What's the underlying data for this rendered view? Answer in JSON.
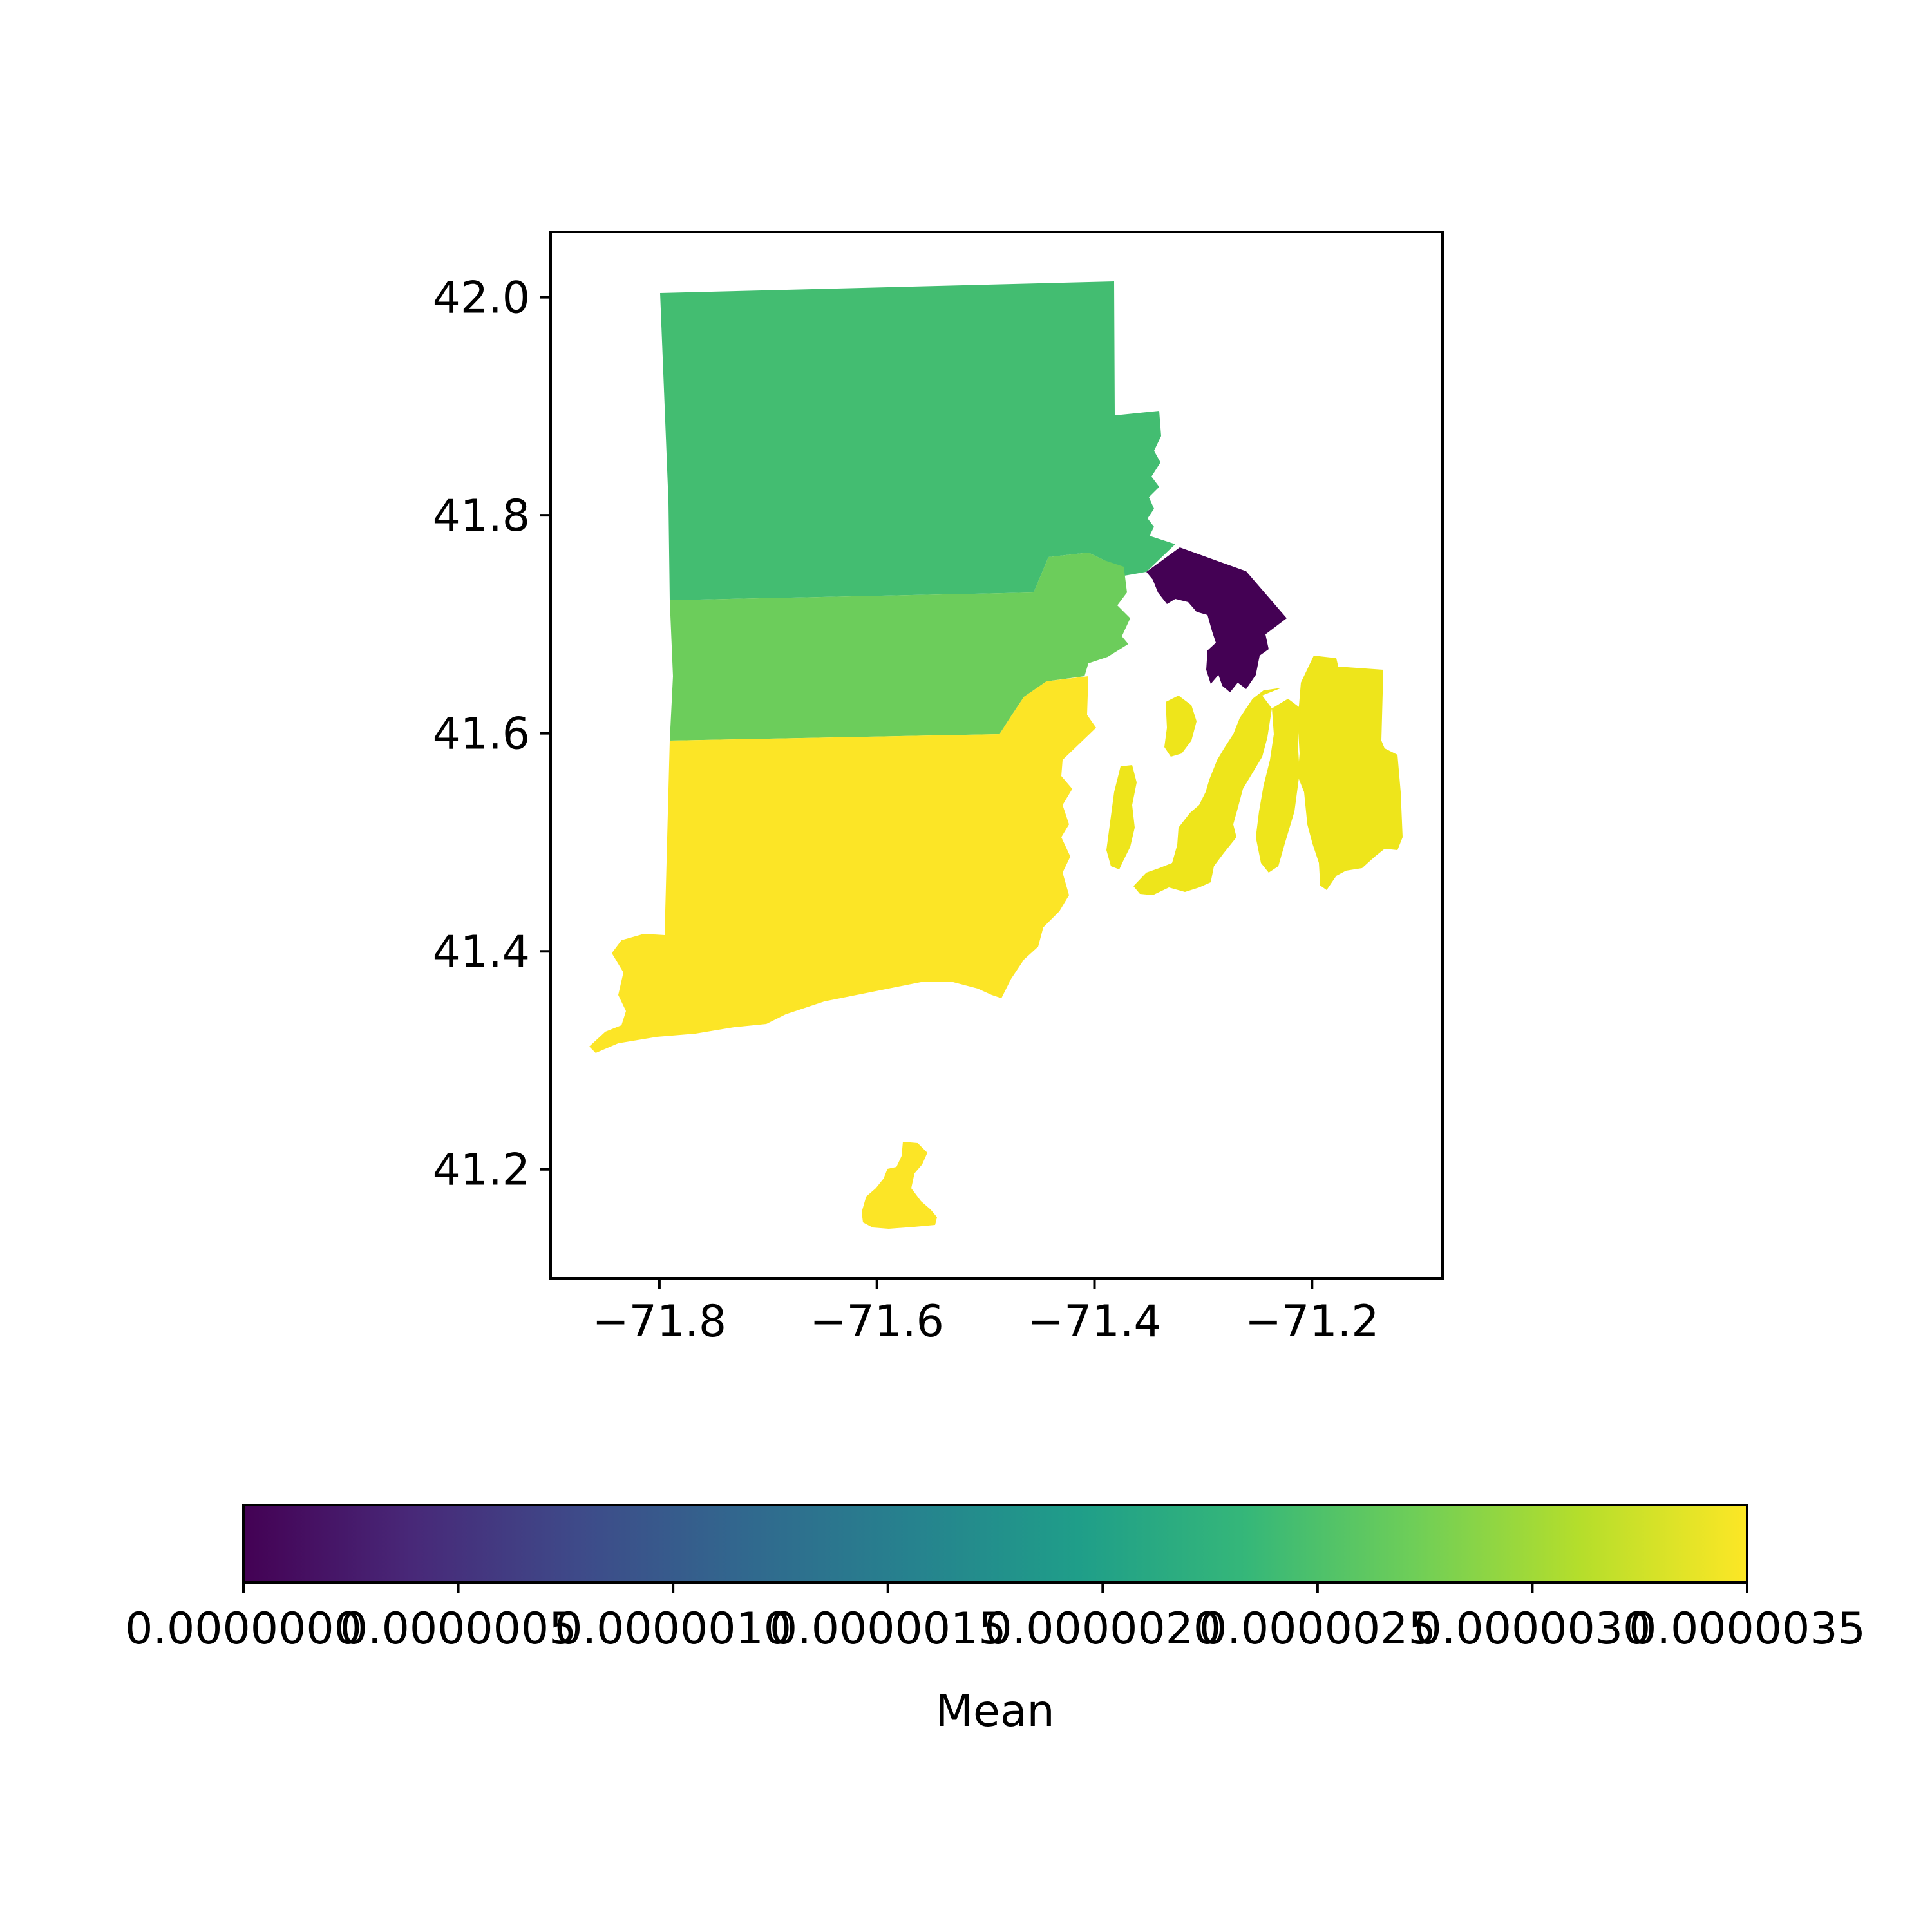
{
  "chart_data": {
    "type": "choropleth",
    "title": "",
    "xlabel": "",
    "ylabel": "",
    "xlim": [
      -71.9,
      -71.08
    ],
    "ylim": [
      41.1,
      42.06
    ],
    "x_ticks": [
      {
        "value": -71.8,
        "label": "−71.8"
      },
      {
        "value": -71.6,
        "label": "−71.6"
      },
      {
        "value": -71.4,
        "label": "−71.4"
      },
      {
        "value": -71.2,
        "label": "−71.2"
      }
    ],
    "y_ticks": [
      {
        "value": 42.0,
        "label": "42.0"
      },
      {
        "value": 41.8,
        "label": "41.8"
      },
      {
        "value": 41.6,
        "label": "41.6"
      },
      {
        "value": 41.4,
        "label": "41.4"
      },
      {
        "value": 41.2,
        "label": "41.2"
      }
    ],
    "regions": [
      {
        "id": "providence",
        "value": 2.1e-06,
        "color": "#43bd71"
      },
      {
        "id": "kent",
        "value": 2.5e-06,
        "color": "#6ccd5b"
      },
      {
        "id": "bristol",
        "value": 0.0,
        "color": "#440154"
      },
      {
        "id": "washington",
        "value": 3.5e-06,
        "color": "#fce526"
      },
      {
        "id": "newport",
        "value": 3.4e-06,
        "color": "#eee51b"
      }
    ],
    "colorbar": {
      "label": "Mean",
      "colormap": "viridis",
      "range": [
        0.0,
        3.5e-06
      ],
      "ticks": [
        {
          "value": 0.0,
          "label": "0.0000000"
        },
        {
          "value": 5e-07,
          "label": "0.0000005"
        },
        {
          "value": 1e-06,
          "label": "0.0000010"
        },
        {
          "value": 1.5e-06,
          "label": "0.0000015"
        },
        {
          "value": 2e-06,
          "label": "0.0000020"
        },
        {
          "value": 2.5e-06,
          "label": "0.0000025"
        },
        {
          "value": 3e-06,
          "label": "0.0000030"
        },
        {
          "value": 3.5e-06,
          "label": "0.0000035"
        }
      ],
      "stops": [
        "#440154",
        "#482878",
        "#3e4a89",
        "#31688e",
        "#26828e",
        "#1f9e89",
        "#35b779",
        "#6ece58",
        "#b5de2b",
        "#fde725"
      ]
    }
  }
}
